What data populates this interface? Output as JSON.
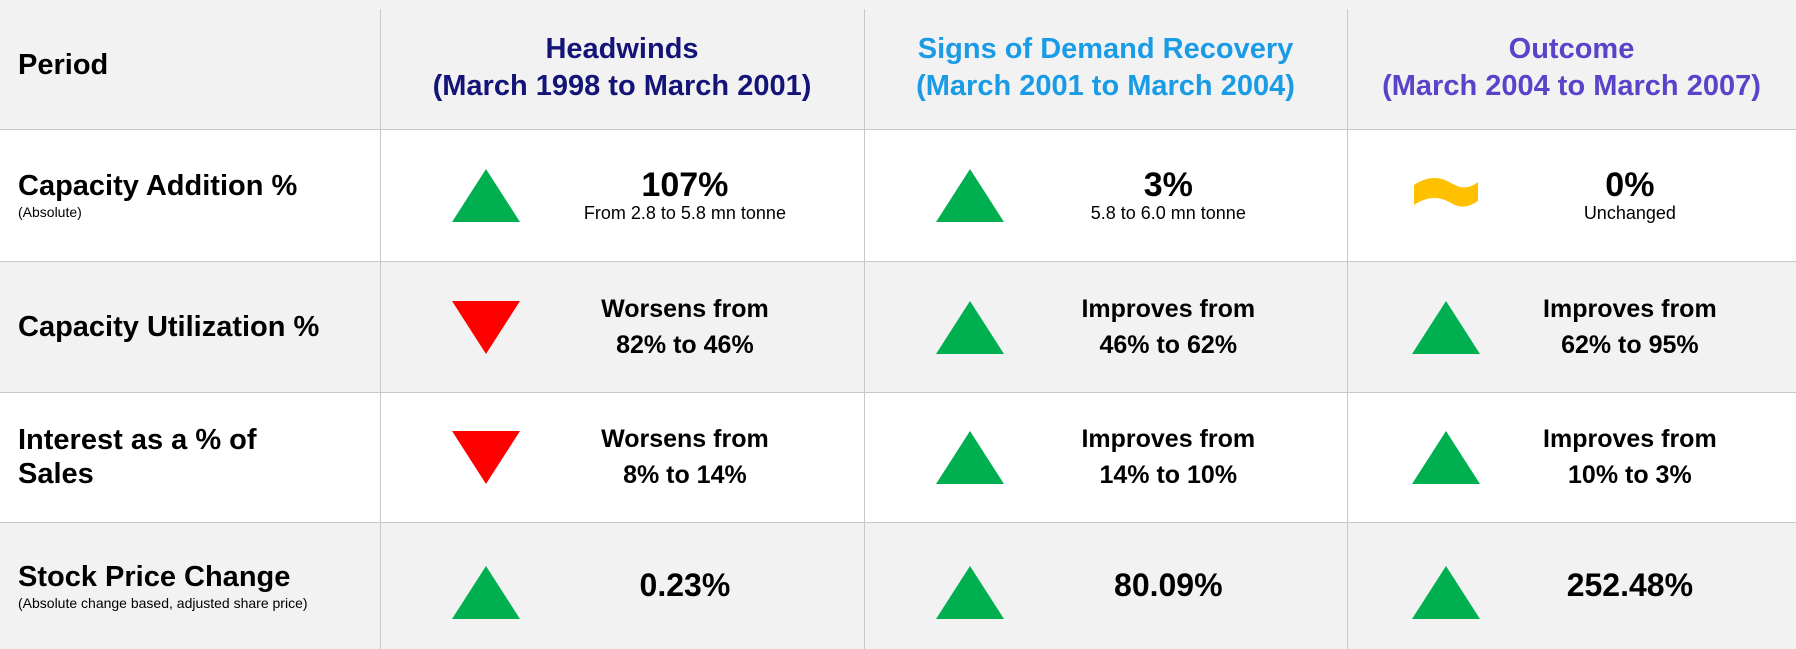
{
  "header": {
    "period": "Period",
    "columns": [
      {
        "title": "Headwinds",
        "subtitle": "(March 1998 to March 2001)",
        "color": "#141478"
      },
      {
        "title": "Signs of Demand Recovery",
        "subtitle": "(March 2001 to March 2004)",
        "color": "#1a9be6"
      },
      {
        "title": "Outcome",
        "subtitle": "(March 2004 to March 2007)",
        "color": "#5b43c9"
      }
    ]
  },
  "rows": [
    {
      "label": "Capacity Addition %",
      "sublabel": "(Absolute)",
      "cells": [
        {
          "icon": "up",
          "lines": [
            "107%"
          ],
          "note": "From 2.8 to 5.8 mn tonne"
        },
        {
          "icon": "up",
          "lines": [
            "3%"
          ],
          "note": "5.8 to 6.0 mn tonne"
        },
        {
          "icon": "flat",
          "lines": [
            "0%"
          ],
          "note": "Unchanged"
        }
      ]
    },
    {
      "label": "Capacity Utilization %",
      "cells": [
        {
          "icon": "down",
          "lines": [
            "Worsens from",
            "82% to 46%"
          ]
        },
        {
          "icon": "up",
          "lines": [
            "Improves from",
            "46% to 62%"
          ]
        },
        {
          "icon": "up",
          "lines": [
            "Improves from",
            "62% to 95%"
          ]
        }
      ]
    },
    {
      "label": "Interest as a % of Sales",
      "cells": [
        {
          "icon": "down",
          "lines": [
            "Worsens from",
            "8% to 14%"
          ]
        },
        {
          "icon": "up",
          "lines": [
            "Improves from",
            "14% to 10%"
          ]
        },
        {
          "icon": "up",
          "lines": [
            "Improves from",
            "10% to 3%"
          ]
        }
      ]
    },
    {
      "label": "Stock Price Change",
      "sublabel": "(Absolute change based, adjusted share price)",
      "cells": [
        {
          "icon": "up",
          "lines": [
            "0.23%"
          ]
        },
        {
          "icon": "up",
          "lines": [
            "80.09%"
          ]
        },
        {
          "icon": "up",
          "lines": [
            "252.48%"
          ]
        }
      ]
    }
  ]
}
